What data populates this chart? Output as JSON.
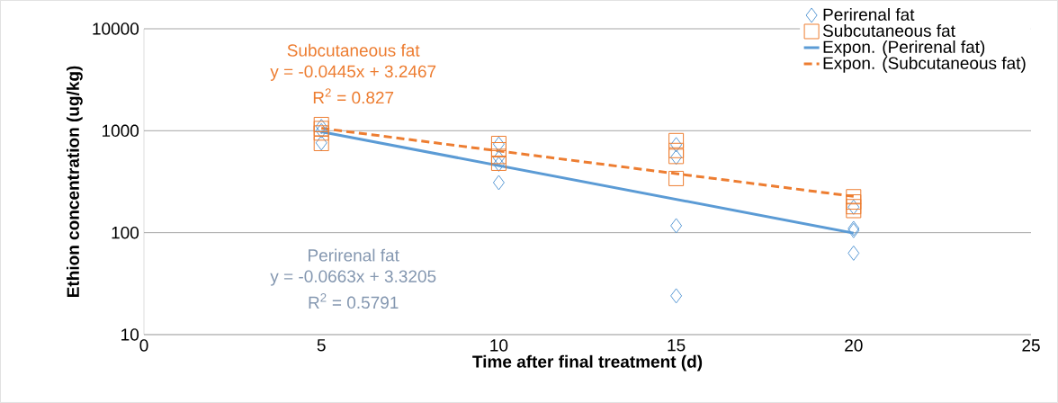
{
  "chart_data": {
    "type": "scatter",
    "xlabel": "Time after final treatment (d)",
    "ylabel": "Ethion concentration (ug/kg)",
    "series": [
      {
        "name": "Perirenal fat",
        "marker": "diamond",
        "color": "#5b9bd5",
        "x": [
          5,
          5,
          5,
          10,
          10,
          10,
          10,
          15,
          15,
          15,
          15,
          20,
          20,
          20,
          20
        ],
        "values": [
          1100,
          1000,
          760,
          740,
          540,
          470,
          310,
          730,
          550,
          117,
          24,
          178,
          110,
          105,
          63
        ]
      },
      {
        "name": "Subcutaneous fat",
        "marker": "square",
        "color": "#ed7d31",
        "x": [
          5,
          5,
          5,
          5,
          10,
          10,
          10,
          10,
          15,
          15,
          15,
          15,
          20,
          20,
          20,
          20
        ],
        "values": [
          1150,
          1050,
          950,
          750,
          750,
          650,
          560,
          480,
          800,
          640,
          560,
          340,
          225,
          200,
          180,
          165
        ]
      },
      {
        "name": "Expon. (Perirenal fat)",
        "type": "line",
        "line_style": "solid",
        "color": "#5b9bd5",
        "x": [
          5,
          20
        ],
        "values": [
          975,
          99
        ]
      },
      {
        "name": "Expon. (Subcutaneous fat)",
        "type": "line",
        "line_style": "dashed",
        "color": "#ed7d31",
        "x": [
          5,
          20
        ],
        "values": [
          1057,
          227
        ]
      }
    ],
    "annotations": [
      "Subcutaneous fat",
      "y = -0.0445x + 3.2467",
      "R$^{2}$ = 0.827",
      "Perirenal fat",
      "y = -0.0663x + 3.3205",
      "R$^{2}$ = 0.5791"
    ],
    "xlim": [
      0,
      25
    ],
    "xticks": [
      0,
      5,
      10,
      15,
      20,
      25
    ],
    "ylim": [
      10,
      10000
    ],
    "yticks": [
      10,
      100,
      1000,
      10000
    ],
    "log": "y",
    "grid": "y",
    "legend": "top right"
  }
}
